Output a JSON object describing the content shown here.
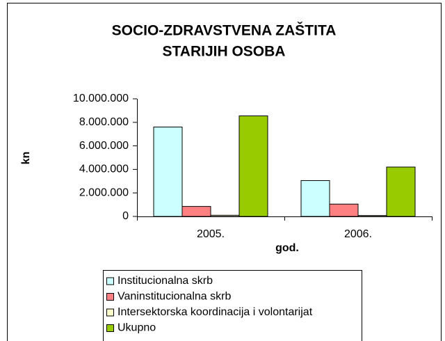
{
  "chart_data": {
    "type": "bar",
    "title": [
      "SOCIO-ZDRAVSTVENA ZAŠTITA",
      "STARIJIH OSOBA"
    ],
    "y_label": "kn",
    "x_label": "god.",
    "categories": [
      "2005.",
      "2006."
    ],
    "series": [
      {
        "name": "Institucionalna skrb",
        "color": "#ccffff",
        "values": [
          7600000,
          3050000
        ]
      },
      {
        "name": "Vaninstitucionalna skrb",
        "color": "#ff8080",
        "values": [
          850000,
          1050000
        ]
      },
      {
        "name": "Intersektorska koordinacija i volontarijat",
        "color": "#ffffcc",
        "values": [
          100000,
          80000
        ]
      },
      {
        "name": "Ukupno",
        "color": "#99cc00",
        "values": [
          8550000,
          4200000
        ]
      }
    ],
    "ylim": [
      0,
      10000000
    ],
    "yticks": [
      0,
      {
        "value": 2000000,
        "label": "2.000.000"
      },
      {
        "value": 4000000,
        "label": "4.000.000"
      },
      {
        "value": 6000000,
        "label": "6.000.000"
      },
      {
        "value": 8000000,
        "label": "8.000.000"
      },
      {
        "value": 10000000,
        "label": "10.000.000"
      }
    ],
    "grid": false,
    "legend": "bottom"
  }
}
